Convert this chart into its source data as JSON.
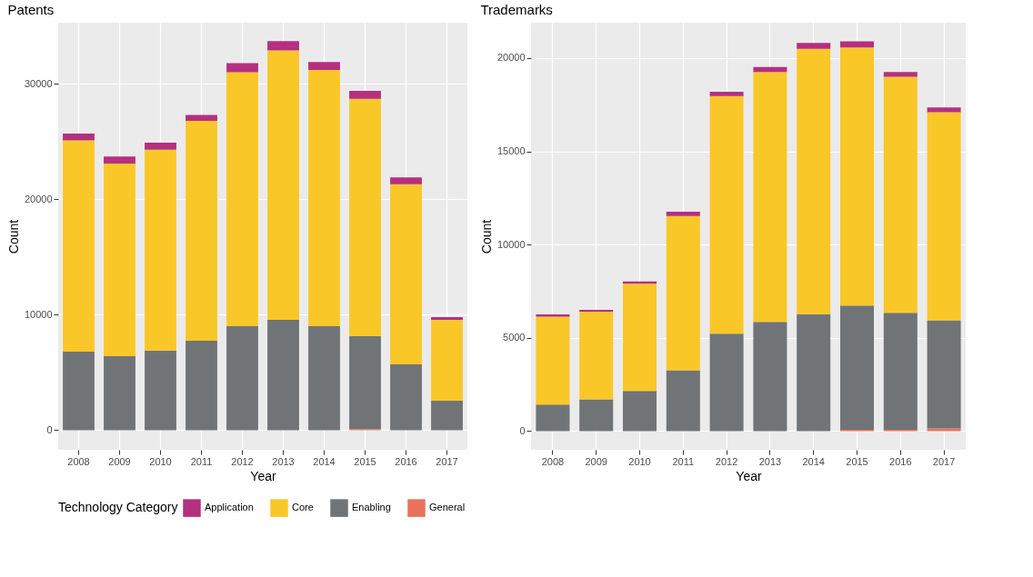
{
  "chart_data": [
    {
      "type": "bar",
      "title": "Patents",
      "xlabel": "Year",
      "ylabel": "Count",
      "legend_title": "Technology Category",
      "stacked": true,
      "grid": true,
      "legend": "bottom",
      "categories": [
        "2008",
        "2009",
        "2010",
        "2011",
        "2012",
        "2013",
        "2014",
        "2015",
        "2016",
        "2017"
      ],
      "ylim": [
        -1700,
        35300
      ],
      "yticks": [
        0,
        10000,
        20000,
        30000
      ],
      "series": [
        {
          "name": "General",
          "color": "#e8735a",
          "values": [
            0,
            0,
            0,
            0,
            0,
            0,
            0,
            100,
            0,
            0
          ]
        },
        {
          "name": "Enabling",
          "color": "#717477",
          "values": [
            6800,
            6400,
            6900,
            7750,
            9000,
            9550,
            9000,
            8050,
            5700,
            2550
          ]
        },
        {
          "name": "Core",
          "color": "#fac729",
          "values": [
            18300,
            16700,
            17400,
            19050,
            22000,
            23350,
            22200,
            20550,
            15600,
            7000
          ]
        },
        {
          "name": "Application",
          "color": "#b5307f",
          "values": [
            600,
            600,
            600,
            500,
            800,
            800,
            700,
            700,
            600,
            250
          ]
        }
      ]
    },
    {
      "type": "bar",
      "title": "Trademarks",
      "xlabel": "Year",
      "ylabel": "Count",
      "stacked": true,
      "grid": true,
      "categories": [
        "2008",
        "2009",
        "2010",
        "2011",
        "2012",
        "2013",
        "2014",
        "2015",
        "2016",
        "2017"
      ],
      "ylim": [
        -1000,
        21900
      ],
      "yticks": [
        0,
        5000,
        10000,
        15000,
        20000
      ],
      "series": [
        {
          "name": "General",
          "color": "#e8735a",
          "values": [
            0,
            0,
            0,
            0,
            0,
            0,
            0,
            70,
            70,
            150
          ]
        },
        {
          "name": "Enabling",
          "color": "#717477",
          "values": [
            1430,
            1700,
            2160,
            3260,
            5220,
            5860,
            6270,
            6660,
            6270,
            5790
          ]
        },
        {
          "name": "Core",
          "color": "#fac729",
          "values": [
            4710,
            4700,
            5740,
            8280,
            12740,
            13400,
            14230,
            13840,
            12660,
            11160
          ]
        },
        {
          "name": "Application",
          "color": "#b5307f",
          "values": [
            120,
            100,
            130,
            220,
            240,
            270,
            320,
            330,
            260,
            260
          ]
        }
      ]
    }
  ]
}
